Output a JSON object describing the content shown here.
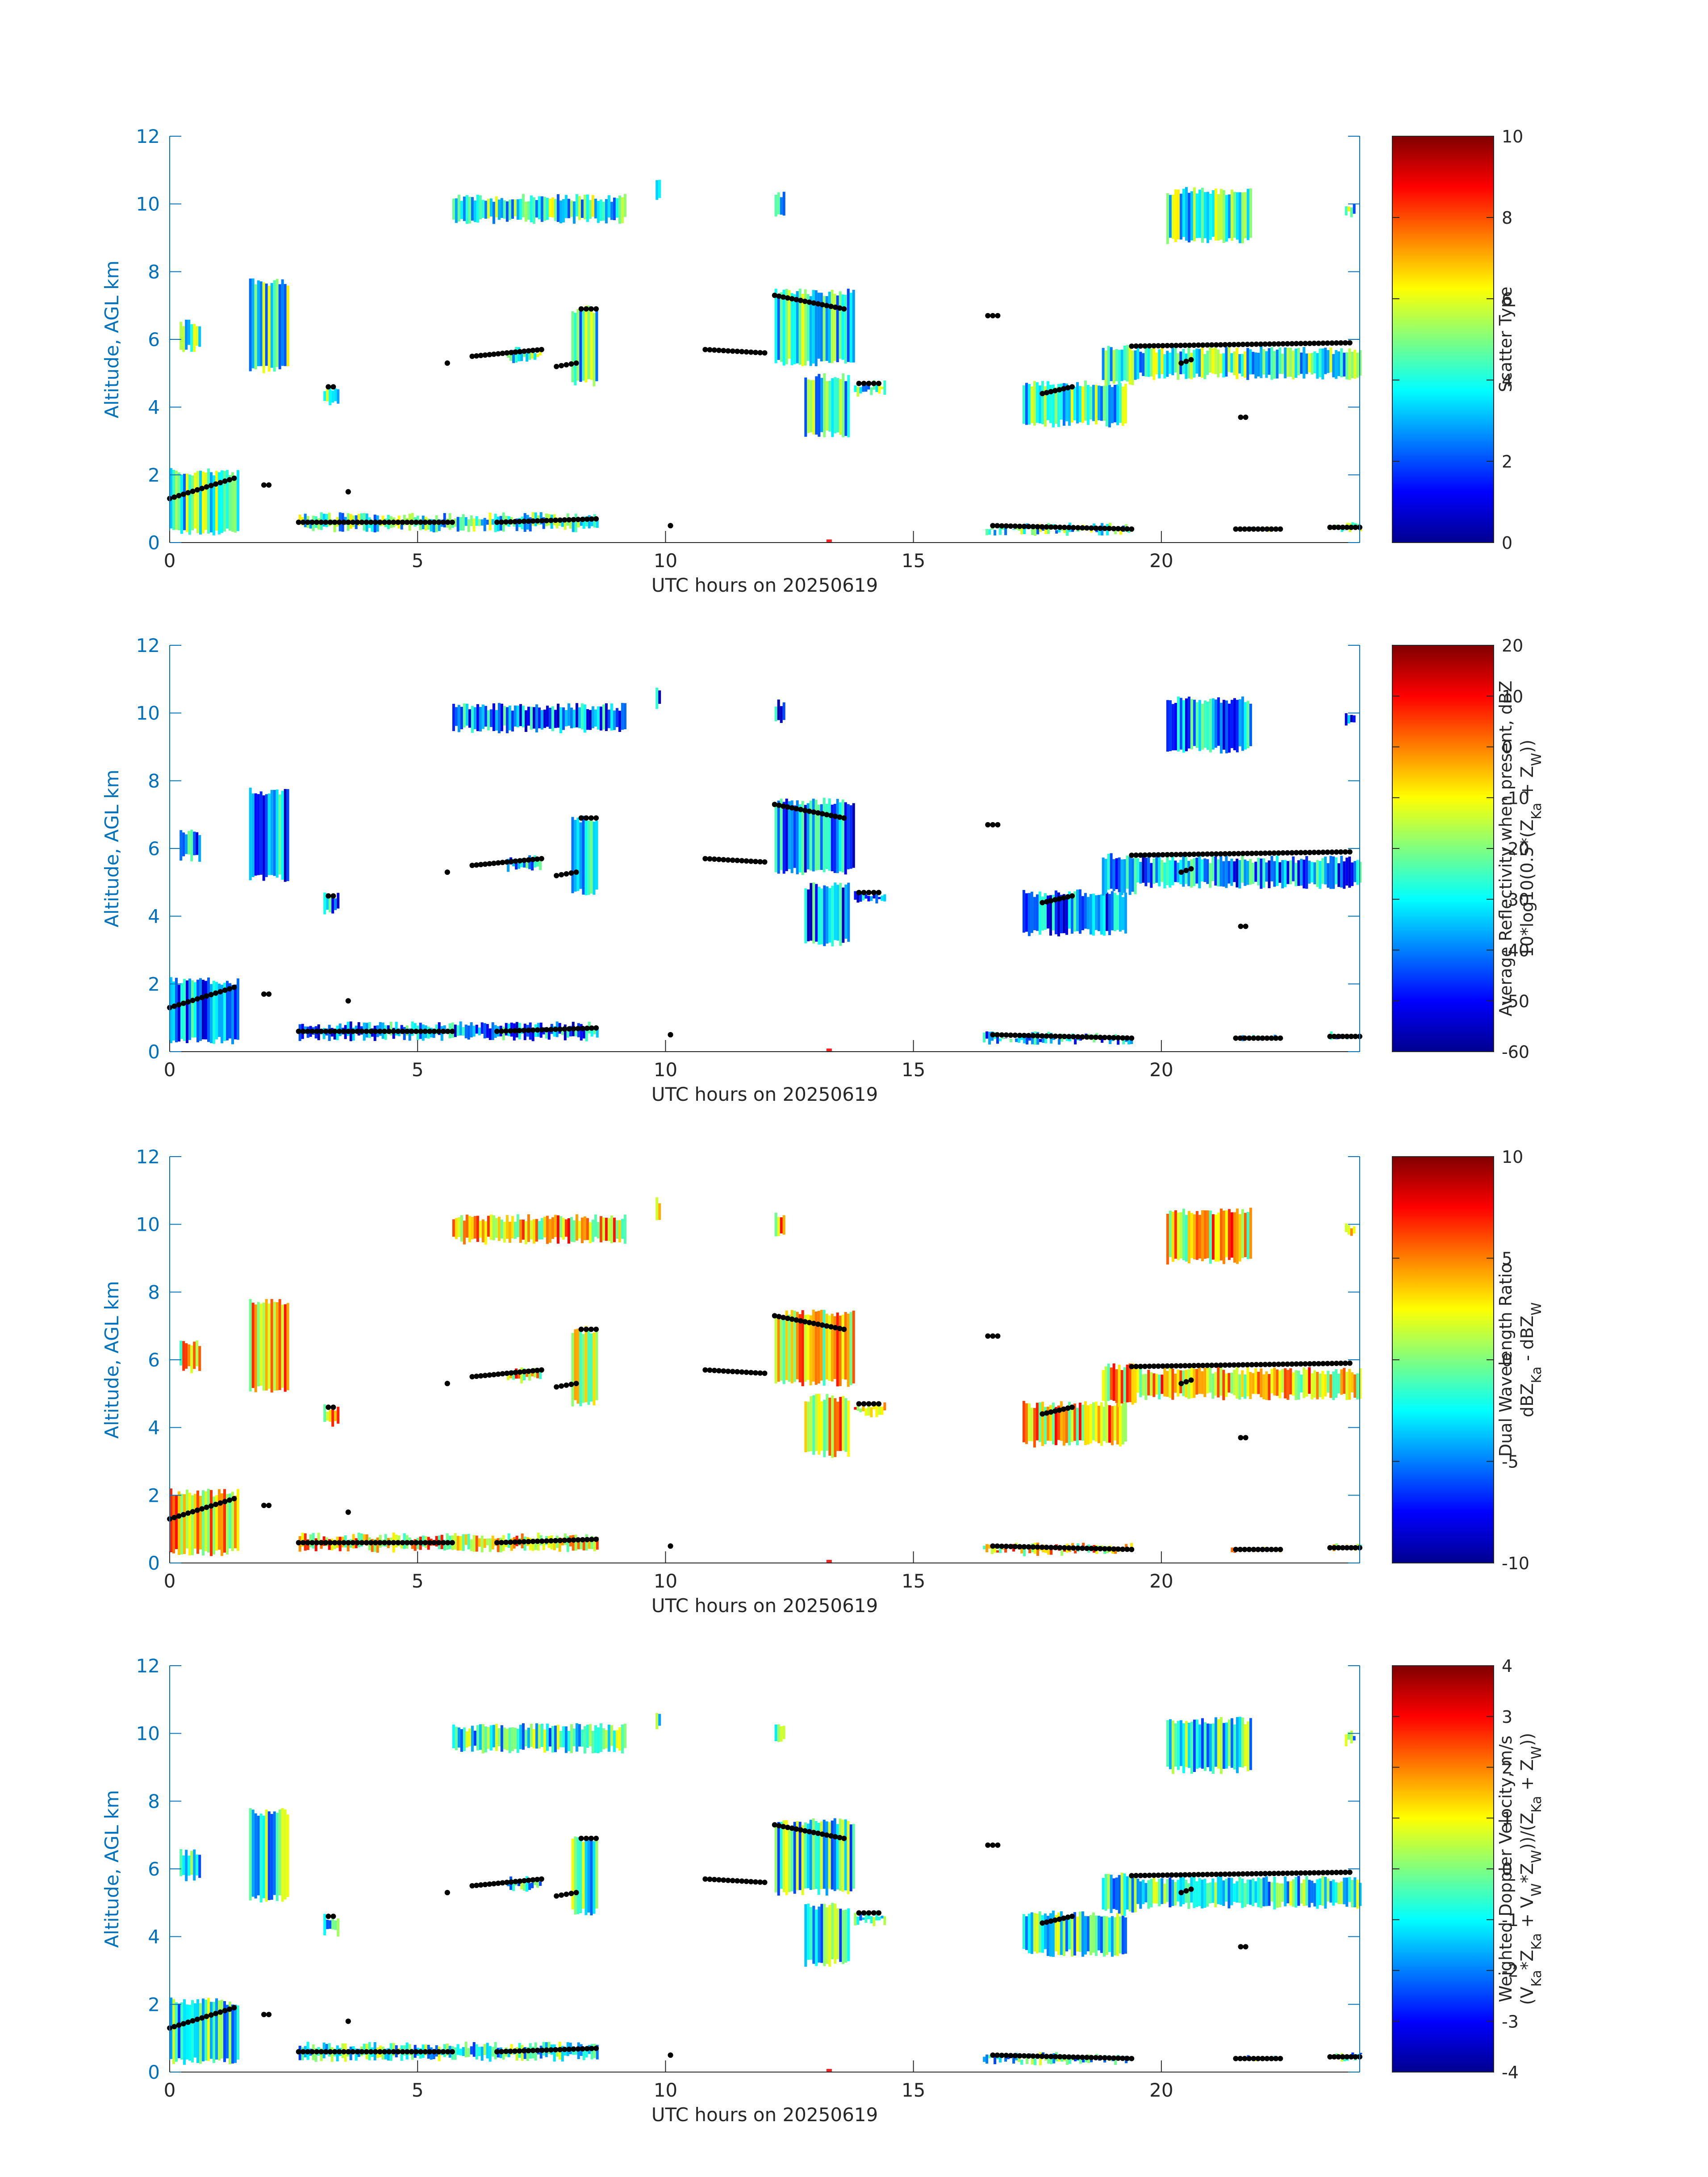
{
  "figure": {
    "date": "20250619",
    "x_axis_label": "UTC hours on 20250619",
    "y_axis_label": "Altitude, AGL km"
  },
  "chart_data": [
    {
      "type": "heatmap",
      "panel": "scatter-type",
      "xlabel": "UTC hours on 20250619",
      "ylabel": "Altitude, AGL km",
      "xlim": [
        0,
        24
      ],
      "ylim": [
        0,
        12
      ],
      "x_ticks": [
        "0",
        "5",
        "10",
        "15",
        "20"
      ],
      "y_ticks": [
        "0",
        "2",
        "4",
        "6",
        "8",
        "10",
        "12"
      ],
      "colorbar": {
        "label_lines": [
          "Scatter Type"
        ],
        "range": [
          0,
          10
        ],
        "ticks": [
          "0",
          "2",
          "4",
          "6",
          "8",
          "10"
        ]
      },
      "fill_value": 4.2
    },
    {
      "type": "heatmap",
      "panel": "average-reflectivity",
      "xlabel": "UTC hours on 20250619",
      "ylabel": "Altitude, AGL km",
      "xlim": [
        0,
        24
      ],
      "ylim": [
        0,
        12
      ],
      "x_ticks": [
        "0",
        "5",
        "10",
        "15",
        "20"
      ],
      "y_ticks": [
        "0",
        "2",
        "4",
        "6",
        "8",
        "10",
        "12"
      ],
      "colorbar": {
        "label_lines": [
          "Average Reflectivity when present, dBZ",
          "10*log10(0.5*(Z_Ka + Z_W))"
        ],
        "range": [
          -60,
          20
        ],
        "ticks": [
          "-60",
          "-50",
          "-40",
          "-30",
          "-20",
          "-10",
          "0",
          "10",
          "20"
        ]
      },
      "fill_value": -38
    },
    {
      "type": "heatmap",
      "panel": "dual-wavelength-ratio",
      "xlabel": "UTC hours on 20250619",
      "ylabel": "Altitude, AGL km",
      "xlim": [
        0,
        24
      ],
      "ylim": [
        0,
        12
      ],
      "x_ticks": [
        "0",
        "5",
        "10",
        "15",
        "20"
      ],
      "y_ticks": [
        "0",
        "2",
        "4",
        "6",
        "8",
        "10",
        "12"
      ],
      "colorbar": {
        "label_lines": [
          "Dual Wavelength Ratio",
          "dBZ_Ka - dBZ_W"
        ],
        "range": [
          -10,
          10
        ],
        "ticks": [
          "-10",
          "-5",
          "0",
          "5",
          "10"
        ]
      },
      "fill_value": 3
    },
    {
      "type": "heatmap",
      "panel": "weighted-doppler-velocity",
      "xlabel": "UTC hours on 20250619",
      "ylabel": "Altitude, AGL km",
      "xlim": [
        0,
        24
      ],
      "ylim": [
        0,
        12
      ],
      "x_ticks": [
        "0",
        "5",
        "10",
        "15",
        "20"
      ],
      "y_ticks": [
        "0",
        "2",
        "4",
        "6",
        "8",
        "10",
        "12"
      ],
      "colorbar": {
        "label_lines": [
          "Weighted Doppler Velocity, m/s",
          "(V_Ka*Z_Ka + V_W*Z_W))/(Z_Ka + Z_W))"
        ],
        "range": [
          -4,
          4
        ],
        "ticks": [
          "-4",
          "-3",
          "-2",
          "-1",
          "0",
          "1",
          "2",
          "3",
          "4"
        ]
      },
      "fill_value": -0.8
    }
  ],
  "echo_regions": [
    {
      "t0": 0.0,
      "t1": 1.4,
      "z0": 0.2,
      "z1": 2.2
    },
    {
      "t0": 0.2,
      "t1": 0.6,
      "z0": 5.6,
      "z1": 6.6
    },
    {
      "t0": 1.6,
      "t1": 2.4,
      "z0": 5.0,
      "z1": 7.8
    },
    {
      "t0": 3.1,
      "t1": 3.4,
      "z0": 4.0,
      "z1": 4.7
    },
    {
      "t0": 2.6,
      "t1": 8.6,
      "z0": 0.3,
      "z1": 0.9
    },
    {
      "t0": 5.7,
      "t1": 9.2,
      "z0": 9.4,
      "z1": 10.3
    },
    {
      "t0": 6.8,
      "t1": 7.5,
      "z0": 5.3,
      "z1": 5.8
    },
    {
      "t0": 8.1,
      "t1": 8.6,
      "z0": 4.6,
      "z1": 7.0
    },
    {
      "t0": 9.8,
      "t1": 9.9,
      "z0": 10.1,
      "z1": 10.8
    },
    {
      "t0": 12.2,
      "t1": 13.8,
      "z0": 5.2,
      "z1": 7.5
    },
    {
      "t0": 12.8,
      "t1": 13.7,
      "z0": 3.1,
      "z1": 5.0
    },
    {
      "t0": 13.8,
      "t1": 14.4,
      "z0": 4.3,
      "z1": 4.8
    },
    {
      "t0": 12.2,
      "t1": 12.4,
      "z0": 9.6,
      "z1": 10.4
    },
    {
      "t0": 16.4,
      "t1": 19.4,
      "z0": 0.2,
      "z1": 0.6
    },
    {
      "t0": 17.2,
      "t1": 19.3,
      "z0": 3.4,
      "z1": 4.8
    },
    {
      "t0": 18.8,
      "t1": 19.5,
      "z0": 4.6,
      "z1": 5.9
    },
    {
      "t0": 19.5,
      "t1": 24.0,
      "z0": 4.8,
      "z1": 5.8
    },
    {
      "t0": 20.1,
      "t1": 21.8,
      "z0": 8.8,
      "z1": 10.5
    },
    {
      "t0": 21.4,
      "t1": 22.4,
      "z0": 0.3,
      "z1": 0.5
    },
    {
      "t0": 23.4,
      "t1": 24.0,
      "z0": 0.3,
      "z1": 0.6
    },
    {
      "t0": 23.7,
      "t1": 23.9,
      "z0": 9.6,
      "z1": 10.1
    }
  ],
  "cloud_base_points": [
    {
      "t0": 0.0,
      "t1": 1.3,
      "z0": 1.3,
      "z1": 1.9
    },
    {
      "t0": 1.9,
      "t1": 2.0,
      "z0": 1.7,
      "z1": 1.7
    },
    {
      "t0": 2.6,
      "t1": 5.7,
      "z0": 0.6,
      "z1": 0.6
    },
    {
      "t0": 6.6,
      "t1": 8.6,
      "z0": 0.6,
      "z1": 0.7
    },
    {
      "t0": 3.2,
      "t1": 3.3,
      "z0": 4.6,
      "z1": 4.6
    },
    {
      "t0": 3.6,
      "t1": 3.6,
      "z0": 1.5,
      "z1": 1.5
    },
    {
      "t0": 5.6,
      "t1": 5.6,
      "z0": 5.3,
      "z1": 5.3
    },
    {
      "t0": 6.1,
      "t1": 7.5,
      "z0": 5.5,
      "z1": 5.7
    },
    {
      "t0": 7.8,
      "t1": 8.2,
      "z0": 5.2,
      "z1": 5.3
    },
    {
      "t0": 8.3,
      "t1": 8.6,
      "z0": 6.9,
      "z1": 6.9
    },
    {
      "t0": 10.1,
      "t1": 10.1,
      "z0": 0.5,
      "z1": 0.5
    },
    {
      "t0": 10.8,
      "t1": 12.0,
      "z0": 5.7,
      "z1": 5.6
    },
    {
      "t0": 12.2,
      "t1": 13.6,
      "z0": 7.3,
      "z1": 6.9
    },
    {
      "t0": 13.9,
      "t1": 14.3,
      "z0": 4.7,
      "z1": 4.7
    },
    {
      "t0": 16.5,
      "t1": 16.7,
      "z0": 6.7,
      "z1": 6.7
    },
    {
      "t0": 16.6,
      "t1": 19.4,
      "z0": 0.5,
      "z1": 0.4
    },
    {
      "t0": 17.6,
      "t1": 18.2,
      "z0": 4.4,
      "z1": 4.6
    },
    {
      "t0": 19.4,
      "t1": 23.8,
      "z0": 5.8,
      "z1": 5.9
    },
    {
      "t0": 20.4,
      "t1": 20.6,
      "z0": 5.3,
      "z1": 5.4
    },
    {
      "t0": 21.6,
      "t1": 21.7,
      "z0": 3.7,
      "z1": 3.7
    },
    {
      "t0": 21.5,
      "t1": 22.4,
      "z0": 0.4,
      "z1": 0.4
    },
    {
      "t0": 23.4,
      "t1": 24.0,
      "z0": 0.45,
      "z1": 0.45
    }
  ],
  "red_marker_time": 13.3
}
